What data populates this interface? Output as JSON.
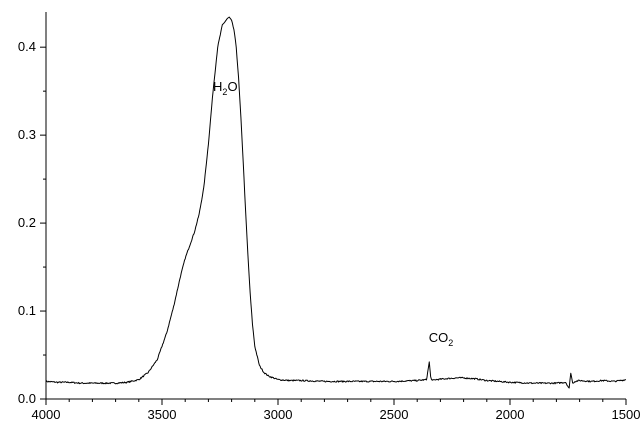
{
  "chart_data": {
    "type": "line",
    "title": "",
    "xlabel": "",
    "ylabel": "",
    "xlim": [
      4000,
      1500
    ],
    "ylim": [
      0.0,
      0.44
    ],
    "grid": false,
    "legend": "none",
    "x_ticks": [
      4000,
      3500,
      3000,
      2500,
      2000,
      1500
    ],
    "x_tick_labels": [
      "4000",
      "3500",
      "3000",
      "2500",
      "2000",
      "1500"
    ],
    "y_ticks": [
      0.0,
      0.1,
      0.2,
      0.3,
      0.4
    ],
    "y_tick_labels": [
      "0.0",
      "0.1",
      "0.2",
      "0.3",
      "0.4"
    ],
    "annotations": [
      {
        "base": "H",
        "sub": "2",
        "tail": "O",
        "x": 3280,
        "y": 0.35
      },
      {
        "base": "CO",
        "sub": "2",
        "tail": "",
        "x": 2350,
        "y": 0.065
      }
    ],
    "series": [
      {
        "color": "#000000",
        "x": [
          4000,
          3950,
          3900,
          3850,
          3800,
          3750,
          3700,
          3650,
          3600,
          3560,
          3520,
          3480,
          3450,
          3420,
          3400,
          3380,
          3360,
          3340,
          3320,
          3300,
          3280,
          3260,
          3240,
          3220,
          3210,
          3200,
          3190,
          3180,
          3170,
          3160,
          3150,
          3140,
          3130,
          3120,
          3110,
          3100,
          3080,
          3060,
          3040,
          3020,
          3000,
          2950,
          2900,
          2800,
          2700,
          2600,
          2500,
          2400,
          2360,
          2355,
          2348,
          2342,
          2335,
          2320,
          2280,
          2230,
          2200,
          2150,
          2100,
          2000,
          1900,
          1800,
          1760,
          1745,
          1738,
          1730,
          1720,
          1700,
          1650,
          1600,
          1550,
          1500
        ],
        "y": [
          0.02,
          0.019,
          0.019,
          0.018,
          0.018,
          0.018,
          0.018,
          0.019,
          0.022,
          0.03,
          0.045,
          0.075,
          0.105,
          0.14,
          0.16,
          0.175,
          0.19,
          0.21,
          0.24,
          0.29,
          0.35,
          0.4,
          0.425,
          0.432,
          0.434,
          0.43,
          0.42,
          0.4,
          0.365,
          0.32,
          0.27,
          0.215,
          0.165,
          0.12,
          0.085,
          0.06,
          0.038,
          0.03,
          0.026,
          0.024,
          0.022,
          0.021,
          0.021,
          0.02,
          0.02,
          0.02,
          0.02,
          0.021,
          0.022,
          0.03,
          0.042,
          0.025,
          0.021,
          0.022,
          0.023,
          0.024,
          0.024,
          0.023,
          0.021,
          0.019,
          0.018,
          0.018,
          0.019,
          0.012,
          0.03,
          0.018,
          0.02,
          0.021,
          0.02,
          0.021,
          0.02,
          0.022
        ]
      }
    ]
  }
}
